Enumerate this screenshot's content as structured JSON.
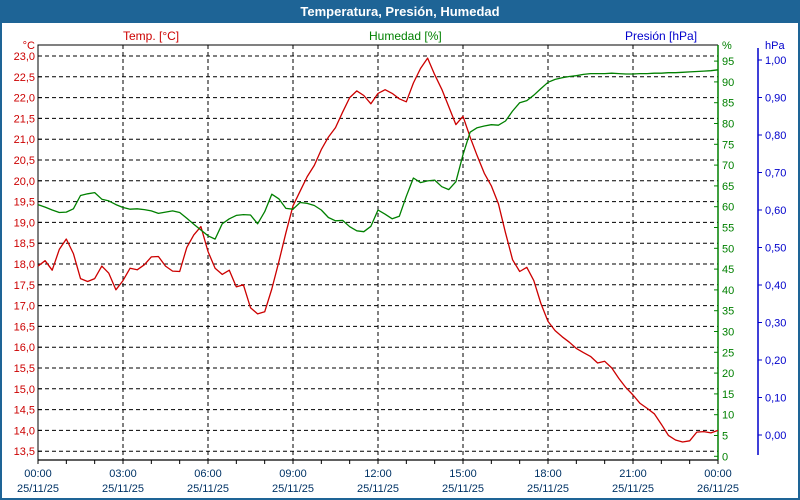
{
  "title": "Temperatura, Presión, Humedad",
  "legend": {
    "temp": "Temp. [°C]",
    "humidity": "Humedad [%]",
    "pressure": "Presión [hPa]"
  },
  "colors": {
    "frame": "#1e6496",
    "temp": "#cc0000",
    "humidity": "#008000",
    "pressure": "#0000cc",
    "axis_text": "#003366",
    "grid": "#000000",
    "background": "#ffffff"
  },
  "chart_data": {
    "type": "line",
    "title": "Temperatura, Presión, Humedad",
    "grid": true,
    "legend_position": "top",
    "x_unit": "hours",
    "x_range": [
      0,
      24
    ],
    "x_step_hours": 0.25,
    "x_ticks": [
      {
        "time": "00:00",
        "date": "25/11/25"
      },
      {
        "time": "03:00",
        "date": "25/11/25"
      },
      {
        "time": "06:00",
        "date": "25/11/25"
      },
      {
        "time": "09:00",
        "date": "25/11/25"
      },
      {
        "time": "12:00",
        "date": "25/11/25"
      },
      {
        "time": "15:00",
        "date": "25/11/25"
      },
      {
        "time": "18:00",
        "date": "25/11/25"
      },
      {
        "time": "21:00",
        "date": "25/11/25"
      },
      {
        "time": "00:00",
        "date": "26/11/25"
      }
    ],
    "axes": {
      "temperature": {
        "unit": "°C",
        "min": 13.5,
        "max": 23.0,
        "step": 0.5,
        "decimals": 1,
        "color": "#cc0000",
        "side": "left"
      },
      "humidity": {
        "unit": "%",
        "min": 0,
        "max": 95,
        "step": 5,
        "decimals": 0,
        "color": "#008000",
        "side": "right"
      },
      "pressure": {
        "unit": "hPa",
        "min": 0.0,
        "max": 1.0,
        "step": 0.1,
        "decimals": 2,
        "color": "#0000cc",
        "side": "far-right"
      }
    },
    "series": [
      {
        "name": "Temp. [°C]",
        "axis": "temperature",
        "color": "#cc0000",
        "values": [
          17.95,
          18.08,
          17.85,
          18.35,
          18.6,
          18.25,
          17.65,
          17.58,
          17.65,
          17.95,
          17.78,
          17.38,
          17.6,
          17.9,
          17.86,
          17.98,
          18.17,
          18.18,
          17.95,
          17.83,
          17.82,
          18.4,
          18.7,
          18.9,
          18.3,
          17.9,
          17.75,
          17.85,
          17.45,
          17.5,
          16.95,
          16.8,
          16.85,
          17.4,
          18.05,
          18.75,
          19.4,
          19.75,
          20.1,
          20.37,
          20.75,
          21.05,
          21.28,
          21.65,
          22.0,
          22.16,
          22.05,
          21.85,
          22.1,
          22.19,
          22.1,
          21.97,
          21.9,
          22.35,
          22.7,
          22.95,
          22.55,
          22.2,
          21.78,
          21.35,
          21.55,
          21.05,
          20.6,
          20.18,
          19.88,
          19.45,
          18.75,
          18.1,
          17.82,
          17.92,
          17.6,
          17.05,
          16.62,
          16.4,
          16.25,
          16.12,
          15.97,
          15.87,
          15.78,
          15.62,
          15.66,
          15.5,
          15.25,
          15.03,
          14.85,
          14.65,
          14.53,
          14.4,
          14.15,
          13.88,
          13.77,
          13.72,
          13.75,
          13.96,
          13.97,
          13.94,
          14.0
        ]
      },
      {
        "name": "Humedad [%]",
        "axis": "humidity",
        "color": "#008000",
        "values": [
          60.5,
          59.9,
          59.2,
          58.6,
          58.7,
          59.5,
          62.7,
          63.1,
          63.4,
          61.8,
          61.4,
          60.5,
          59.8,
          59.4,
          59.5,
          59.3,
          59.0,
          58.4,
          58.7,
          59.0,
          58.6,
          57.2,
          55.8,
          54.4,
          53.0,
          52.2,
          55.9,
          57.1,
          57.9,
          58.1,
          58.0,
          55.9,
          58.8,
          63.0,
          61.9,
          59.6,
          59.4,
          61.0,
          60.8,
          60.3,
          59.2,
          57.4,
          56.6,
          56.7,
          55.2,
          54.2,
          54.0,
          55.3,
          59.2,
          58.2,
          57.1,
          57.7,
          62.5,
          66.9,
          65.8,
          66.2,
          66.4,
          64.8,
          64.1,
          66.0,
          72.5,
          77.9,
          79.0,
          79.4,
          79.7,
          79.6,
          80.6,
          83.0,
          85.0,
          85.5,
          86.8,
          88.4,
          89.9,
          90.6,
          91.0,
          91.3,
          91.5,
          91.8,
          92.0,
          92.0,
          92.0,
          92.1,
          92.0,
          91.9,
          91.9,
          92.0,
          92.0,
          92.1,
          92.1,
          92.2,
          92.2,
          92.3,
          92.4,
          92.5,
          92.6,
          92.7,
          92.9
        ]
      },
      {
        "name": "Presión [hPa]",
        "axis": "pressure",
        "color": "#0000cc",
        "values": []
      }
    ]
  }
}
